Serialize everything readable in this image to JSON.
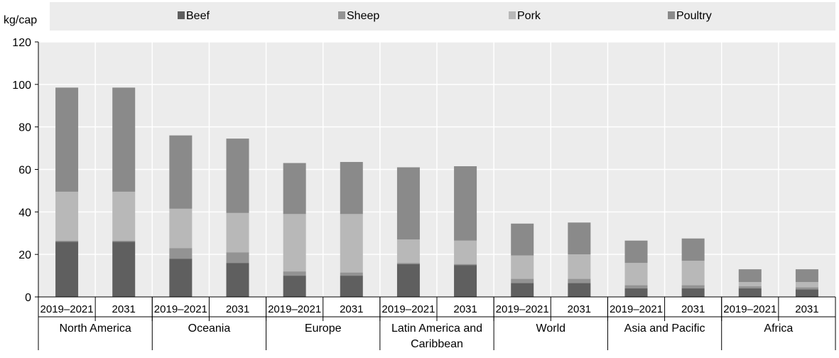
{
  "chart_data": {
    "type": "bar",
    "stacked": true,
    "ylabel": "kg/cap",
    "ylim": [
      0,
      120
    ],
    "yticks": [
      0,
      20,
      40,
      60,
      80,
      100,
      120
    ],
    "grid": true,
    "legend_position": "top",
    "groups": [
      {
        "name": "North America",
        "lines": [
          "North America"
        ],
        "periods": [
          "2019–2021",
          "2031"
        ]
      },
      {
        "name": "Oceania",
        "lines": [
          "Oceania"
        ],
        "periods": [
          "2019–2021",
          "2031"
        ]
      },
      {
        "name": "Europe",
        "lines": [
          "Europe"
        ],
        "periods": [
          "2019–2021",
          "2031"
        ]
      },
      {
        "name": "Latin America and Caribbean",
        "lines": [
          "Latin America and",
          "Caribbean"
        ],
        "periods": [
          "2019–2021",
          "2031"
        ]
      },
      {
        "name": "World",
        "lines": [
          "World"
        ],
        "periods": [
          "2019–2021",
          "2031"
        ]
      },
      {
        "name": "Asia and Pacific",
        "lines": [
          "Asia and Pacific"
        ],
        "periods": [
          "2019–2021",
          "2031"
        ]
      },
      {
        "name": "Africa",
        "lines": [
          "Africa"
        ],
        "periods": [
          "2019–2021",
          "2031"
        ]
      }
    ],
    "series": [
      {
        "name": "Beef",
        "color": "#5f5f5f",
        "values": [
          26,
          26,
          18,
          16,
          10,
          10,
          15.5,
          15,
          6.5,
          6.5,
          4,
          4,
          4,
          3.5
        ]
      },
      {
        "name": "Sheep",
        "color": "#939393",
        "values": [
          0.5,
          0.5,
          5,
          5,
          2,
          1.5,
          0.5,
          0.5,
          2,
          2,
          1.5,
          1.5,
          1,
          1
        ]
      },
      {
        "name": "Pork",
        "color": "#b8b8b8",
        "values": [
          23,
          23,
          18.5,
          18.5,
          27,
          27.5,
          11,
          11,
          11,
          11.5,
          10.5,
          11.5,
          2,
          2.5
        ]
      },
      {
        "name": "Poultry",
        "color": "#8a8a8a",
        "values": [
          49,
          49,
          34.5,
          35,
          24,
          24.5,
          34,
          35,
          15,
          15,
          10.5,
          10.5,
          6,
          6
        ]
      }
    ]
  }
}
